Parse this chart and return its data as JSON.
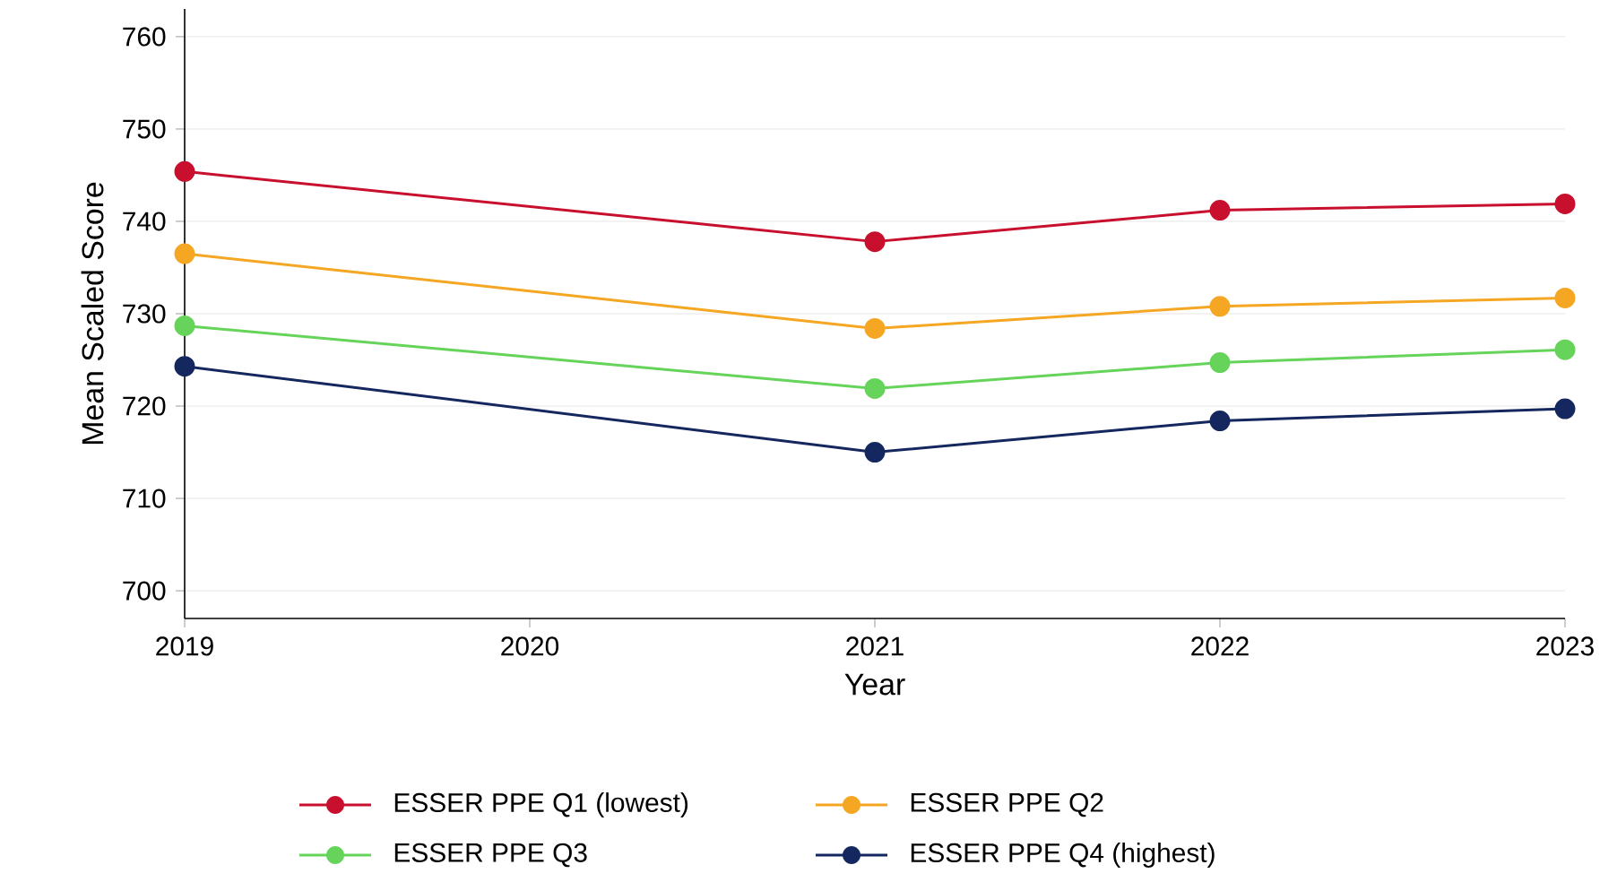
{
  "chart_data": {
    "type": "line",
    "xlabel": "Year",
    "ylabel": "Mean Scaled Score",
    "x": [
      2019,
      2021,
      2022,
      2023
    ],
    "xlim": [
      2019,
      2023
    ],
    "xticks": [
      2019,
      2020,
      2021,
      2022,
      2023
    ],
    "ylim": [
      697,
      763
    ],
    "yticks": [
      700,
      710,
      720,
      730,
      740,
      750,
      760
    ],
    "grid": "y",
    "legend": "bottom",
    "marker": "circle",
    "line_style": "solid",
    "series": [
      {
        "name": "ESSER PPE Q1 (lowest)",
        "color": "#c8102e",
        "values": [
          745.4,
          737.8,
          741.2,
          741.9
        ]
      },
      {
        "name": "ESSER PPE Q2",
        "color": "#f5a623",
        "values": [
          736.5,
          728.4,
          730.8,
          731.7
        ]
      },
      {
        "name": "ESSER PPE Q3",
        "color": "#66d45a",
        "values": [
          728.7,
          721.9,
          724.7,
          726.1
        ]
      },
      {
        "name": "ESSER PPE Q4 (highest)",
        "color": "#14275e",
        "values": [
          724.3,
          715.0,
          718.4,
          719.7
        ]
      }
    ]
  }
}
